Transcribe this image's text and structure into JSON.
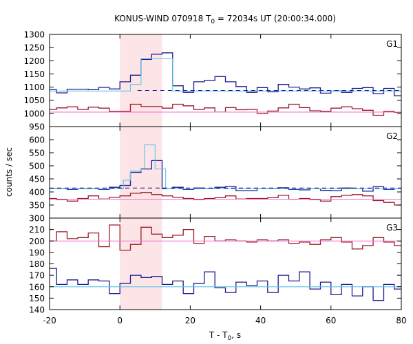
{
  "chart_data": {
    "type": "line",
    "title": {
      "pre": "KONUS-WIND 070918 T",
      "sub": "0",
      "post": " = 72034s UT (20:00:34.000)"
    },
    "xlabel": {
      "pre": "T - T",
      "sub": "0",
      "post": ", s"
    },
    "ylabel": "counts / sec",
    "xlim": [
      -20,
      80
    ],
    "x_ticks": [
      -20,
      0,
      20,
      40,
      60,
      80
    ],
    "x_tick_labels": [
      "-20",
      "0",
      "20",
      "40",
      "60",
      "80"
    ],
    "highlight_interval": [
      0,
      12
    ],
    "colors": {
      "highlight": "#fde4e6",
      "red_series": "#9b1b24",
      "red_fit": "#f178d0",
      "blue_series": "#1b1b8f",
      "blue_fit": "#5bc6ea",
      "blue_bg_dashed": "#1b1b8f"
    },
    "panels": [
      {
        "label": "G1",
        "ylim": [
          950,
          1300
        ],
        "y_ticks": [
          950,
          1000,
          1050,
          1100,
          1150,
          1200,
          1250,
          1300
        ],
        "y_tick_labels": [
          "950",
          "1000",
          "1050",
          "1100",
          "1150",
          "1200",
          "1250",
          "1300"
        ],
        "series": [
          {
            "role": "blue",
            "step_edges": [
              -20,
              -18,
              -15,
              -12,
              -9,
              -6,
              -3,
              0,
              3,
              6,
              9,
              12,
              15,
              18,
              21,
              24,
              27,
              30,
              33,
              36,
              39,
              42,
              45,
              48,
              51,
              54,
              57,
              60,
              63,
              66,
              69,
              72,
              75,
              78,
              80
            ],
            "values": [
              1090,
              1078,
              1092,
              1092,
              1090,
              1099,
              1093,
              1120,
              1145,
              1205,
              1225,
              1230,
              1105,
              1080,
              1120,
              1125,
              1140,
              1120,
              1102,
              1080,
              1098,
              1082,
              1110,
              1100,
              1093,
              1097,
              1077,
              1085,
              1080,
              1095,
              1098,
              1075,
              1095,
              1067
            ]
          },
          {
            "role": "red",
            "step_edges": [
              -20,
              -18,
              -15,
              -12,
              -9,
              -6,
              -3,
              0,
              3,
              6,
              9,
              12,
              15,
              18,
              21,
              24,
              27,
              30,
              33,
              36,
              39,
              42,
              45,
              48,
              51,
              54,
              57,
              60,
              63,
              66,
              69,
              72,
              75,
              78,
              80
            ],
            "values": [
              1015,
              1021,
              1025,
              1015,
              1024,
              1020,
              1008,
              1008,
              1035,
              1026,
              1026,
              1020,
              1035,
              1029,
              1015,
              1021,
              1005,
              1022,
              1014,
              1015,
              1000,
              1009,
              1021,
              1035,
              1022,
              1010,
              1008,
              1020,
              1025,
              1018,
              1012,
              993,
              1008,
              1004
            ]
          },
          {
            "role": "blue_fit",
            "step_edges": [
              -20,
              0,
              3,
              6,
              12,
              15,
              28,
              80
            ],
            "values": [
              1085,
              1085,
              1110,
              1208,
              1208,
              1085,
              1085
            ]
          },
          {
            "role": "blue_bg_dashed",
            "x": [
              -20,
              80
            ],
            "values": [
              1087,
              1087
            ],
            "from_x": 5
          },
          {
            "role": "red_fit",
            "x": [
              -20,
              80
            ],
            "values": [
              1005,
              1005
            ]
          }
        ]
      },
      {
        "label": "G2",
        "ylim": [
          300,
          650
        ],
        "y_ticks": [
          300,
          350,
          400,
          450,
          500,
          550,
          600
        ],
        "y_tick_labels": [
          "300",
          "350",
          "400",
          "450",
          "500",
          "550",
          "600"
        ],
        "series": [
          {
            "role": "blue",
            "step_edges": [
              -20,
              -18,
              -15,
              -12,
              -9,
              -6,
              -3,
              0,
              3,
              6,
              9,
              12,
              15,
              18,
              21,
              24,
              27,
              30,
              33,
              36,
              39,
              42,
              45,
              48,
              51,
              54,
              57,
              60,
              63,
              66,
              69,
              72,
              75,
              78,
              80
            ],
            "values": [
              413,
              413,
              410,
              413,
              413,
              410,
              418,
              425,
              475,
              488,
              520,
              412,
              418,
              410,
              415,
              413,
              418,
              421,
              405,
              405,
              412,
              413,
              416,
              410,
              408,
              412,
              406,
              405,
              415,
              412,
              403,
              420,
              410,
              412
            ]
          },
          {
            "role": "red",
            "step_edges": [
              -20,
              -18,
              -15,
              -12,
              -9,
              -6,
              -3,
              0,
              3,
              6,
              9,
              12,
              15,
              18,
              21,
              24,
              27,
              30,
              33,
              36,
              39,
              42,
              45,
              48,
              51,
              54,
              57,
              60,
              63,
              66,
              69,
              72,
              75,
              78,
              80
            ],
            "values": [
              375,
              370,
              365,
              375,
              385,
              373,
              380,
              385,
              395,
              398,
              390,
              385,
              380,
              375,
              370,
              375,
              378,
              385,
              373,
              375,
              375,
              378,
              387,
              372,
              375,
              370,
              365,
              382,
              387,
              390,
              385,
              367,
              360,
              350
            ]
          },
          {
            "role": "blue_fit",
            "step_edges": [
              -20,
              0,
              1,
              3,
              6,
              7,
              10,
              13,
              16,
              80
            ],
            "values": [
              412,
              412,
              445,
              480,
              490,
              580,
              488,
              412,
              412
            ]
          },
          {
            "role": "blue_bg_dashed",
            "x": [
              -20,
              80
            ],
            "values": [
              415,
              415
            ],
            "from_x": -20
          },
          {
            "role": "red_fit",
            "x": [
              -20,
              80
            ],
            "values": [
              372,
              372
            ]
          }
        ]
      },
      {
        "label": "G3",
        "ylim": [
          140,
          220
        ],
        "y_ticks": [
          140,
          150,
          160,
          170,
          180,
          190,
          200,
          210
        ],
        "y_tick_labels": [
          "140",
          "150",
          "160",
          "170",
          "180",
          "190",
          "200",
          "210"
        ],
        "series": [
          {
            "role": "red",
            "step_edges": [
              -20,
              -18,
              -15,
              -12,
              -9,
              -6,
              -3,
              0,
              3,
              6,
              9,
              12,
              15,
              18,
              21,
              24,
              27,
              30,
              33,
              36,
              39,
              42,
              45,
              48,
              51,
              54,
              57,
              60,
              63,
              66,
              69,
              72,
              75,
              78,
              80
            ],
            "values": [
              200,
              208,
              202,
              203,
              207,
              195,
              214,
              192,
              197,
              212,
              206,
              203,
              205,
              210,
              198,
              204,
              200,
              201,
              200,
              199,
              201,
              200,
              201,
              198,
              199,
              197,
              201,
              203,
              199,
              193,
              196,
              203,
              199,
              196
            ]
          },
          {
            "role": "blue",
            "step_edges": [
              -20,
              -18,
              -15,
              -12,
              -9,
              -6,
              -3,
              0,
              3,
              6,
              9,
              12,
              15,
              18,
              21,
              24,
              27,
              30,
              33,
              36,
              39,
              42,
              45,
              48,
              51,
              54,
              57,
              60,
              63,
              66,
              69,
              72,
              75,
              78,
              80
            ],
            "values": [
              176,
              162,
              166,
              162,
              166,
              165,
              154,
              163,
              170,
              168,
              169,
              162,
              165,
              154,
              163,
              173,
              159,
              155,
              164,
              161,
              165,
              155,
              170,
              165,
              173,
              158,
              164,
              153,
              162,
              152,
              160,
              148,
              162,
              158
            ]
          },
          {
            "role": "red_fit",
            "x": [
              -20,
              80
            ],
            "values": [
              200,
              200
            ]
          },
          {
            "role": "blue_fit",
            "x": [
              -20,
              80
            ],
            "values": [
              160,
              160
            ]
          }
        ]
      }
    ]
  }
}
